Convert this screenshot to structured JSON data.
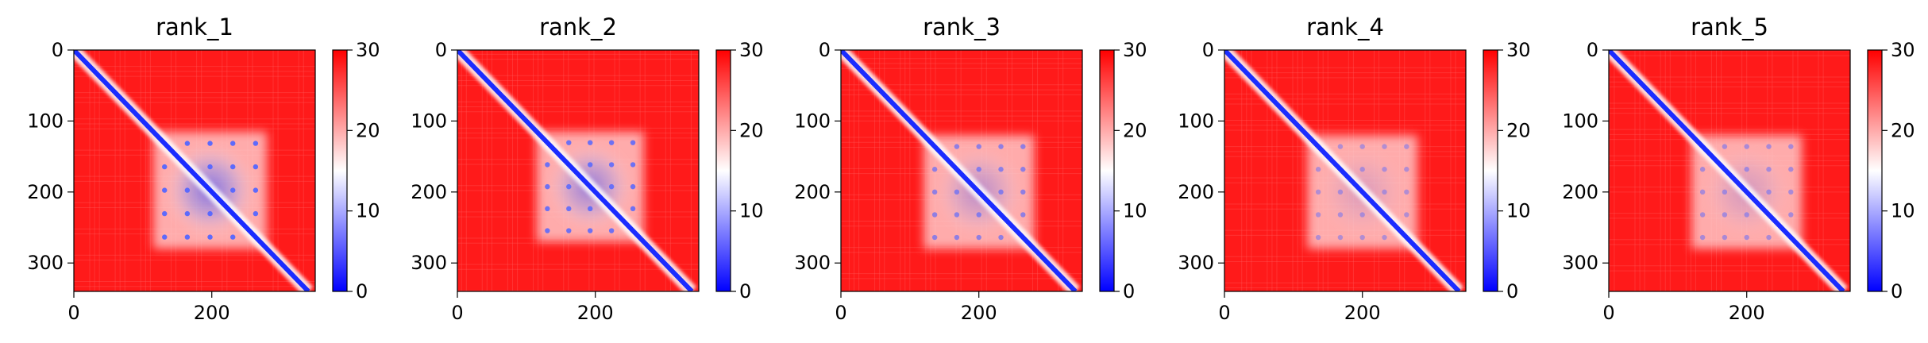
{
  "chart_data": [
    {
      "type": "heatmap",
      "title": "rank_1",
      "xlim": [
        0,
        350
      ],
      "ylim": [
        340,
        0
      ],
      "x_ticks": [
        0,
        200
      ],
      "y_ticks": [
        0,
        100,
        200,
        300
      ],
      "colorbar": {
        "range": [
          0,
          30
        ],
        "ticks": [
          0,
          10,
          20,
          30
        ],
        "colors": [
          "#0000ff",
          "#ffffff",
          "#ff0000"
        ]
      },
      "diagonal_feature": true,
      "blue_block": {
        "x": [
          115,
          280
        ],
        "y": [
          115,
          280
        ],
        "strength": 0.7
      }
    },
    {
      "type": "heatmap",
      "title": "rank_2",
      "xlim": [
        0,
        350
      ],
      "ylim": [
        340,
        0
      ],
      "x_ticks": [
        0,
        200
      ],
      "y_ticks": [
        0,
        100,
        200,
        300
      ],
      "colorbar": {
        "range": [
          0,
          30
        ],
        "ticks": [
          0,
          10,
          20,
          30
        ],
        "colors": [
          "#0000ff",
          "#ffffff",
          "#ff0000"
        ]
      },
      "diagonal_feature": true,
      "blue_block": {
        "x": [
          115,
          270
        ],
        "y": [
          115,
          270
        ],
        "strength": 0.6
      }
    },
    {
      "type": "heatmap",
      "title": "rank_3",
      "xlim": [
        0,
        350
      ],
      "ylim": [
        340,
        0
      ],
      "x_ticks": [
        0,
        200
      ],
      "y_ticks": [
        0,
        100,
        200,
        300
      ],
      "colorbar": {
        "range": [
          0,
          30
        ],
        "ticks": [
          0,
          10,
          20,
          30
        ],
        "colors": [
          "#0000ff",
          "#ffffff",
          "#ff0000"
        ]
      },
      "diagonal_feature": true,
      "blue_block": {
        "x": [
          120,
          280
        ],
        "y": [
          120,
          280
        ],
        "strength": 0.4
      }
    },
    {
      "type": "heatmap",
      "title": "rank_4",
      "xlim": [
        0,
        350
      ],
      "ylim": [
        340,
        0
      ],
      "x_ticks": [
        0,
        200
      ],
      "y_ticks": [
        0,
        100,
        200,
        300
      ],
      "colorbar": {
        "range": [
          0,
          30
        ],
        "ticks": [
          0,
          10,
          20,
          30
        ],
        "colors": [
          "#0000ff",
          "#ffffff",
          "#ff0000"
        ]
      },
      "diagonal_feature": true,
      "blue_block": {
        "x": [
          120,
          280
        ],
        "y": [
          120,
          280
        ],
        "strength": 0.2
      }
    },
    {
      "type": "heatmap",
      "title": "rank_5",
      "xlim": [
        0,
        350
      ],
      "ylim": [
        340,
        0
      ],
      "x_ticks": [
        0,
        200
      ],
      "y_ticks": [
        0,
        100,
        200,
        300
      ],
      "colorbar": {
        "range": [
          0,
          30
        ],
        "ticks": [
          0,
          10,
          20,
          30
        ],
        "colors": [
          "#0000ff",
          "#ffffff",
          "#ff0000"
        ]
      },
      "diagonal_feature": true,
      "blue_block": {
        "x": [
          120,
          280
        ],
        "y": [
          120,
          280
        ],
        "strength": 0.25
      }
    }
  ]
}
